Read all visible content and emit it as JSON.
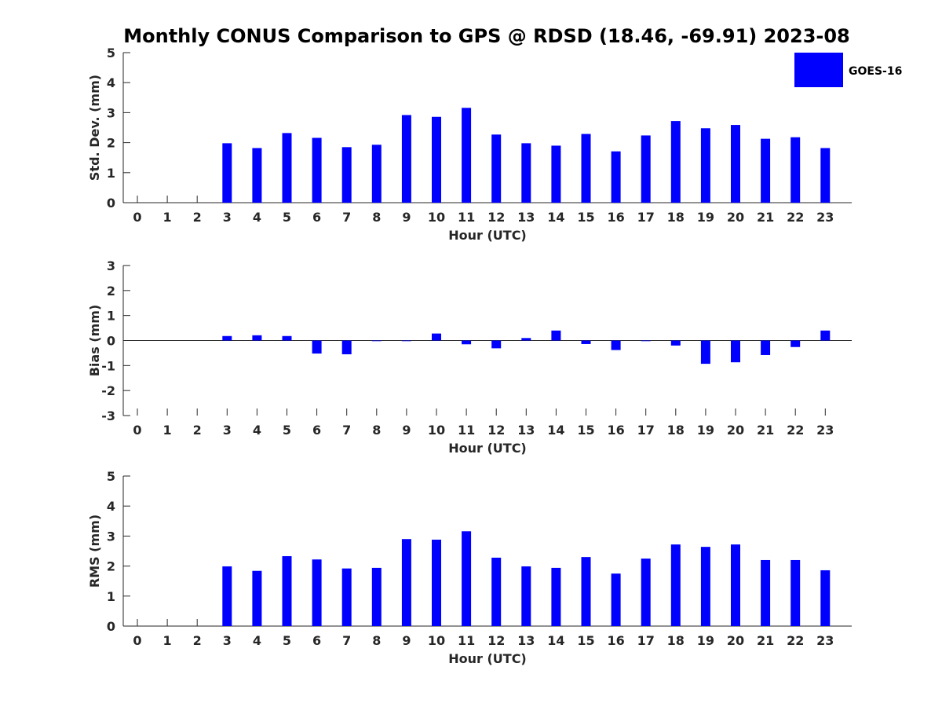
{
  "title": "Monthly CONUS Comparison to GPS @ RDSD (18.46, -69.91) 2023-08",
  "bar_color": "#0000ff",
  "legend": {
    "label": "GOES-16",
    "placement": "top-right"
  },
  "chart_data": [
    {
      "type": "bar",
      "xlabel": "Hour (UTC)",
      "ylabel": "Std. Dev. (mm)",
      "ylim": [
        0,
        5
      ],
      "yticks": [
        0,
        1,
        2,
        3,
        4,
        5
      ],
      "categories": [
        "0",
        "1",
        "2",
        "3",
        "4",
        "5",
        "6",
        "7",
        "8",
        "9",
        "10",
        "11",
        "12",
        "13",
        "14",
        "15",
        "16",
        "17",
        "18",
        "19",
        "20",
        "21",
        "22",
        "23"
      ],
      "series": [
        {
          "name": "GOES-16",
          "values": [
            null,
            null,
            null,
            1.98,
            1.82,
            2.32,
            2.16,
            1.85,
            1.93,
            2.92,
            2.86,
            3.16,
            2.27,
            1.98,
            1.9,
            2.29,
            1.71,
            2.24,
            2.72,
            2.48,
            2.59,
            2.13,
            2.18,
            1.82
          ]
        }
      ]
    },
    {
      "type": "bar",
      "xlabel": "Hour (UTC)",
      "ylabel": "Bias (mm)",
      "ylim": [
        -3,
        3
      ],
      "yticks": [
        -3,
        -2,
        -1,
        0,
        1,
        2,
        3
      ],
      "categories": [
        "0",
        "1",
        "2",
        "3",
        "4",
        "5",
        "6",
        "7",
        "8",
        "9",
        "10",
        "11",
        "12",
        "13",
        "14",
        "15",
        "16",
        "17",
        "18",
        "19",
        "20",
        "21",
        "22",
        "23"
      ],
      "series": [
        {
          "name": "GOES-16",
          "values": [
            null,
            null,
            null,
            0.18,
            0.21,
            0.18,
            -0.52,
            -0.55,
            -0.02,
            -0.01,
            0.28,
            -0.15,
            -0.31,
            0.1,
            0.4,
            -0.14,
            -0.38,
            -0.02,
            -0.2,
            -0.93,
            -0.87,
            -0.58,
            -0.26,
            0.4
          ]
        }
      ]
    },
    {
      "type": "bar",
      "xlabel": "Hour (UTC)",
      "ylabel": "RMS (mm)",
      "ylim": [
        0,
        5
      ],
      "yticks": [
        0,
        1,
        2,
        3,
        4,
        5
      ],
      "categories": [
        "0",
        "1",
        "2",
        "3",
        "4",
        "5",
        "6",
        "7",
        "8",
        "9",
        "10",
        "11",
        "12",
        "13",
        "14",
        "15",
        "16",
        "17",
        "18",
        "19",
        "20",
        "21",
        "22",
        "23"
      ],
      "series": [
        {
          "name": "GOES-16",
          "values": [
            null,
            null,
            null,
            1.99,
            1.84,
            2.33,
            2.22,
            1.92,
            1.94,
            2.9,
            2.88,
            3.16,
            2.28,
            1.99,
            1.94,
            2.3,
            1.75,
            2.25,
            2.72,
            2.64,
            2.72,
            2.2,
            2.2,
            1.86
          ]
        }
      ]
    }
  ]
}
